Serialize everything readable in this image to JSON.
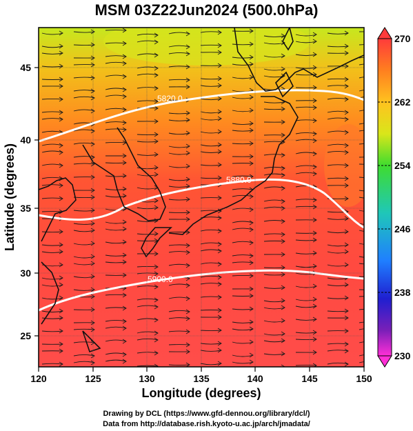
{
  "title": "MSM 03Z22Jun2024 (500.0hPa)",
  "axes": {
    "xlabel": "Longitude (degrees)",
    "ylabel": "Latitude  (degrees)",
    "xlim": [
      120,
      150
    ],
    "ylim": [
      22.5,
      47.5
    ],
    "xticks": [
      "120",
      "125",
      "130",
      "135",
      "140",
      "145",
      "150"
    ],
    "yticks": [
      "25",
      "30",
      "35",
      "40",
      "45"
    ]
  },
  "colorbar": {
    "range": [
      230,
      270
    ],
    "labels": [
      "270",
      "262",
      "254",
      "246",
      "238",
      "230"
    ],
    "colors": [
      "#ff3b3b",
      "#ff7f1f",
      "#ffc21f",
      "#d9e61a",
      "#3fdc2f",
      "#1fc7b8",
      "#1f7fff",
      "#1f1fd0",
      "#7a1fb8",
      "#ff2fd6"
    ]
  },
  "contours": [
    {
      "label": "5820.0"
    },
    {
      "label": "5880.0"
    },
    {
      "label": "5900.0"
    }
  ],
  "credits": {
    "line1": "Drawing by DCL (https://www.gfd-dennou.org/library/dcl/)",
    "line2": "Data from http://database.rish.kyoto-u.ac.jp/arch/jmadata/"
  },
  "chart_data": {
    "type": "heatmap",
    "title": "MSM 03Z22Jun2024 (500.0hPa)",
    "xlabel": "Longitude (degrees)",
    "ylabel": "Latitude  (degrees)",
    "xlim": [
      120,
      150
    ],
    "ylim": [
      22.5,
      47.5
    ],
    "colorbar_range": [
      230,
      270
    ],
    "contour_levels": [
      5820,
      5880,
      5900
    ],
    "grid": true
  }
}
